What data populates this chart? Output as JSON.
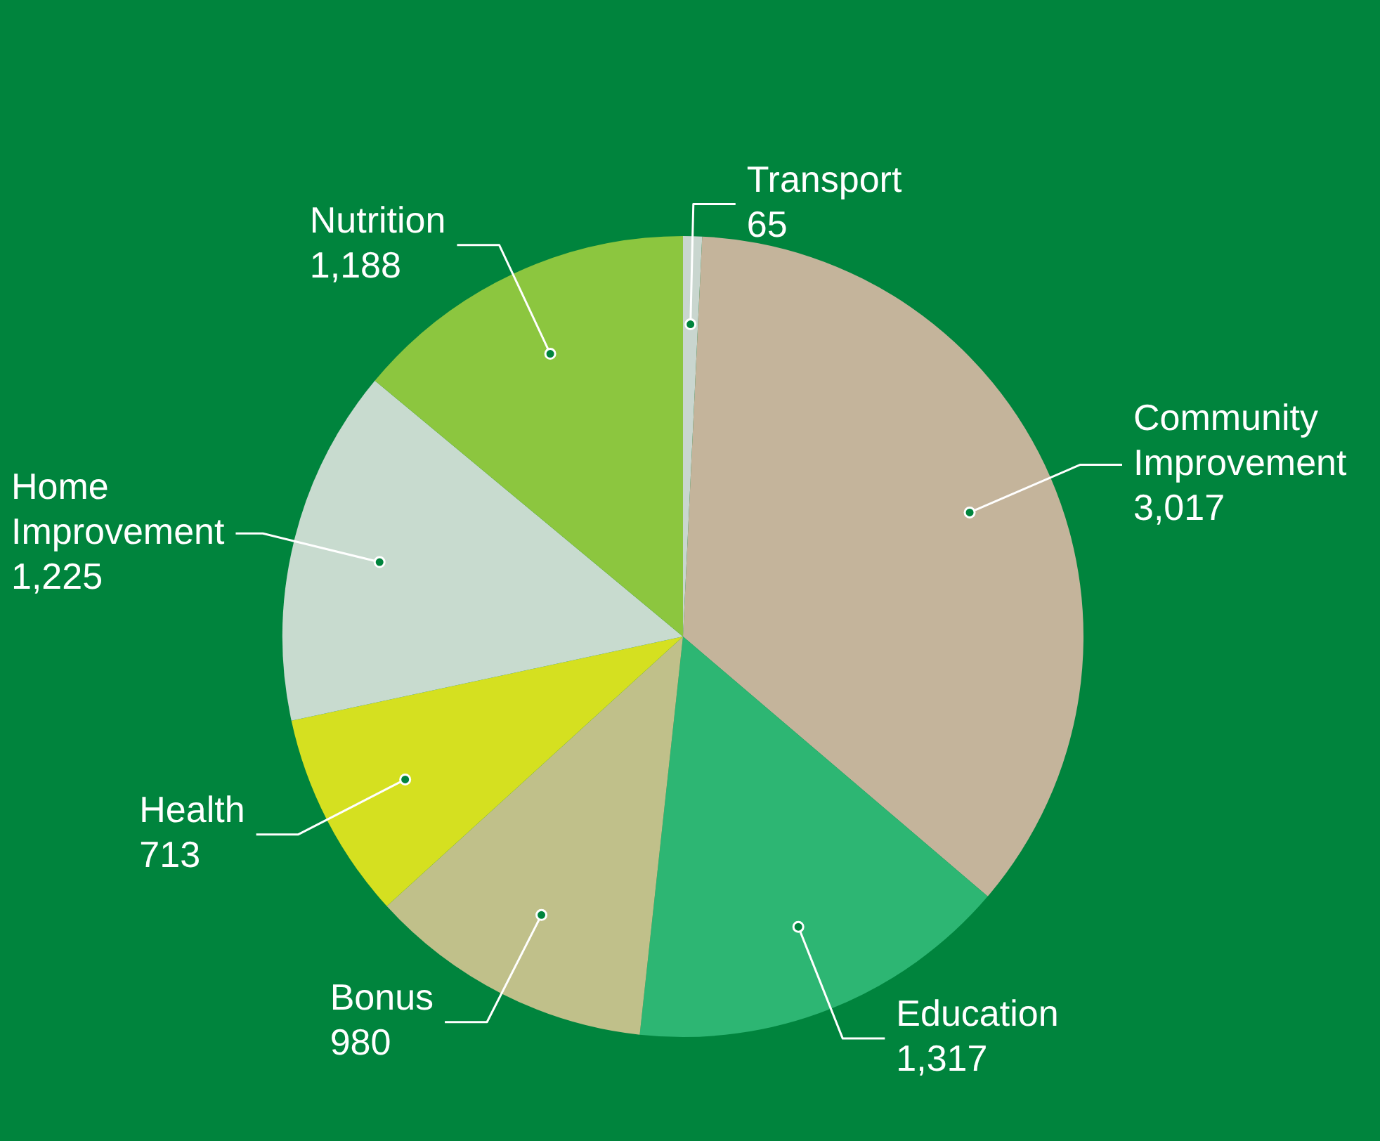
{
  "chart_data": {
    "type": "pie",
    "categories": [
      "Transport",
      "Community Improvement",
      "Education",
      "Bonus",
      "Health",
      "Home Improvement",
      "Nutrition"
    ],
    "values": [
      65,
      3017,
      1317,
      980,
      713,
      1225,
      1188
    ],
    "colors": [
      "#c9d6cf",
      "#c4b49b",
      "#2db673",
      "#c0c08a",
      "#d5e020",
      "#c8dbcf",
      "#8cc63f"
    ],
    "value_labels": [
      "65",
      "3,017",
      "1,317",
      "980",
      "713",
      "1,225",
      "1,188"
    ],
    "legend": false
  }
}
